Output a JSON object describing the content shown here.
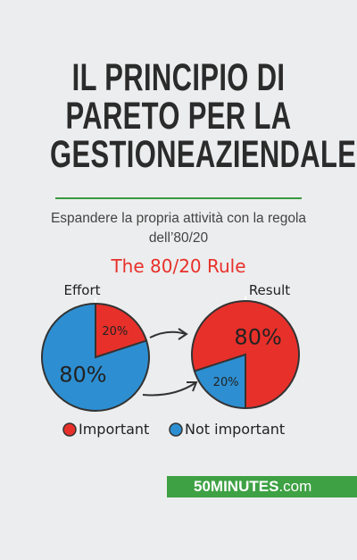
{
  "title_lines": [
    "IL PRINCIPIO DI",
    "PARETO PER LA",
    "GESTIONEAZIENDALE"
  ],
  "subtitle": "Espandere la propria attività con la regola dell’80/20",
  "illustration": {
    "title": "The 80/20 Rule",
    "pies": [
      {
        "label": "Effort",
        "values": [
          20,
          80
        ],
        "value_labels": [
          "20%",
          "80%"
        ],
        "colors": [
          "#e8302a",
          "#2d8fd2"
        ]
      },
      {
        "label": "Result",
        "values": [
          80,
          20
        ],
        "value_labels": [
          "80%",
          "20%"
        ],
        "colors": [
          "#e8302a",
          "#2d8fd2"
        ]
      }
    ],
    "legend": [
      {
        "name": "Important",
        "color": "#e8302a"
      },
      {
        "name": "Not important",
        "color": "#2d8fd2"
      }
    ]
  },
  "brand": {
    "bold": "50MINUTES",
    "rest": ".com"
  }
}
